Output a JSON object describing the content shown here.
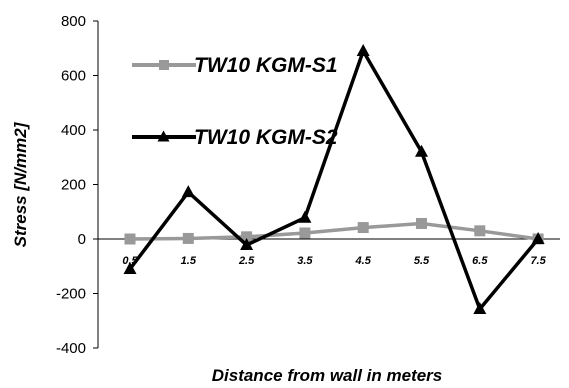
{
  "chart_data": {
    "type": "line",
    "xlabel": "Distance from wall in meters",
    "ylabel": "Stress [N/mm2]",
    "x": [
      "0.5",
      "1.5",
      "2.5",
      "3.5",
      "4.5",
      "5.5",
      "6.5",
      "7.5"
    ],
    "ylim": [
      -400,
      800
    ],
    "yticks": [
      -400,
      -200,
      0,
      200,
      400,
      600,
      800
    ],
    "grid": false,
    "legend_position": "top-left",
    "series": [
      {
        "name": "TW10 KGM-S1",
        "marker": "square",
        "color": "#999999",
        "values": [
          0,
          2,
          8,
          22,
          42,
          57,
          30,
          0
        ]
      },
      {
        "name": "TW10 KGM-S2",
        "marker": "triangle",
        "color": "#000000",
        "values": [
          -110,
          172,
          -22,
          78,
          690,
          320,
          -257,
          0
        ]
      }
    ]
  }
}
